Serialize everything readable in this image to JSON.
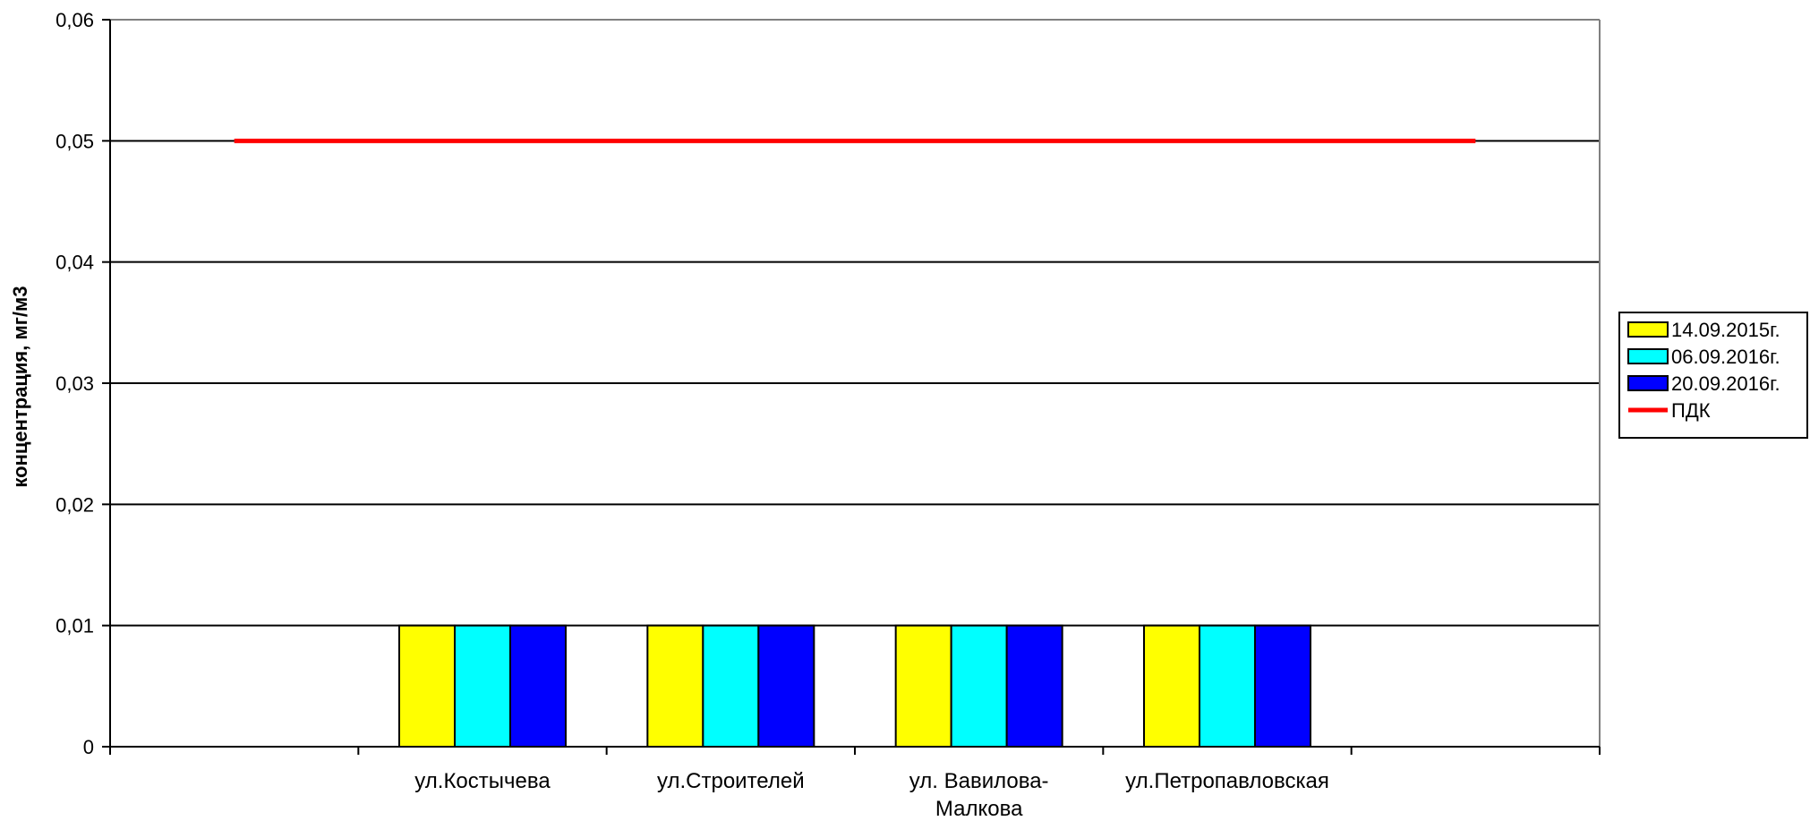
{
  "chart_data": {
    "type": "bar",
    "title": "",
    "xlabel": "",
    "ylabel": "концентрация, мг/м3",
    "ylim": [
      0,
      0.06
    ],
    "yticks": [
      0,
      0.01,
      0.02,
      0.03,
      0.04,
      0.05,
      0.06
    ],
    "ytick_labels": [
      "0",
      "0,01",
      "0,02",
      "0,03",
      "0,04",
      "0,05",
      "0,06"
    ],
    "categories": [
      "",
      "ул.Костычева",
      "ул.Строителей",
      "ул. Вавилова-Малкова",
      "ул.Петропавловская",
      ""
    ],
    "category_lines": [
      [],
      [
        "ул.Костычева"
      ],
      [
        "ул.Строителей"
      ],
      [
        "ул. Вавилова-",
        "Малкова"
      ],
      [
        "ул.Петропавловская"
      ],
      []
    ],
    "series": [
      {
        "name": "14.09.2015г.",
        "color": "#ffff00",
        "values": [
          null,
          0.01,
          0.01,
          0.01,
          0.01,
          null
        ]
      },
      {
        "name": "06.09.2016г.",
        "color": "#00ffff",
        "values": [
          null,
          0.01,
          0.01,
          0.01,
          0.01,
          null
        ]
      },
      {
        "name": "20.09.2016г.",
        "color": "#0000ff",
        "values": [
          null,
          0.01,
          0.01,
          0.01,
          0.01,
          null
        ]
      }
    ],
    "lines": [
      {
        "name": "ПДК",
        "color": "#ff0000",
        "values": [
          0.05,
          0.05,
          0.05,
          0.05,
          0.05,
          0.05
        ]
      }
    ],
    "grid": true,
    "legend": "right"
  }
}
